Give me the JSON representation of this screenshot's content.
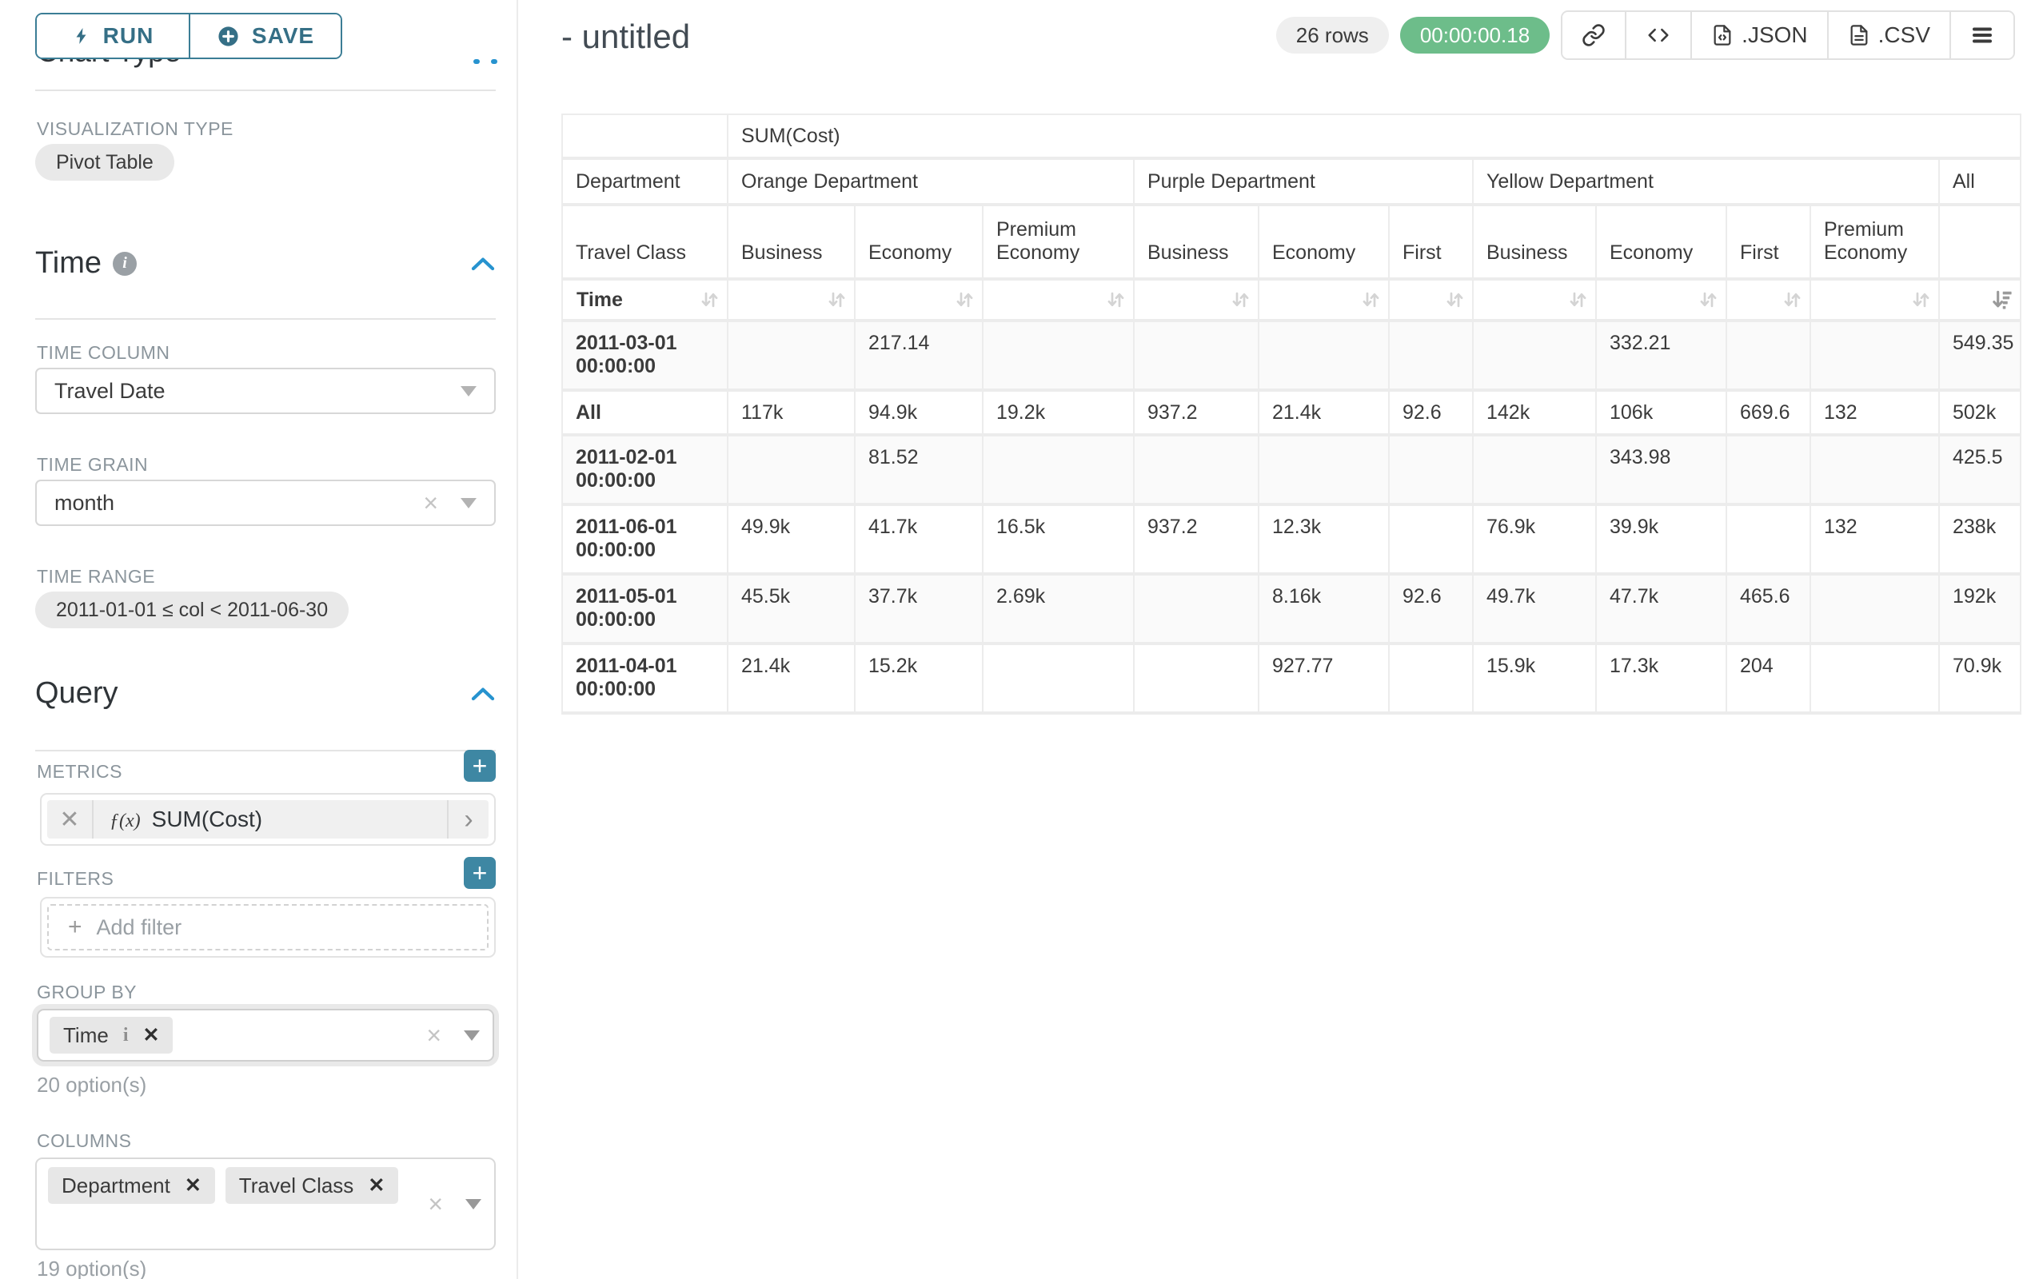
{
  "colors": {
    "teal": "#3b7d95",
    "blue_chevron": "#2793cf",
    "green_badge": "#6dbd8a",
    "label_gray": "#8b959c"
  },
  "icons": {
    "run": "lightning-icon",
    "save": "plus-circle-icon",
    "time_info": "info-circle-icon",
    "section_collapse": "chevron-up-icon",
    "select_open": "caret-down-icon",
    "select_clear": "x-icon",
    "metric_function": "fx-icon",
    "metric_expand": "chevron-right-icon",
    "add": "plus-icon",
    "share": "link-icon",
    "view_query": "code-icon",
    "export_json": "file-code-icon",
    "export_csv": "file-lines-icon",
    "more": "hamburger-menu-icon",
    "sort_inactive": "sort-up-down-icon",
    "sort_active": "sort-amount-desc-icon"
  },
  "sidebar": {
    "run_button": "RUN",
    "save_button": "SAVE",
    "chart_type_section": "Chart Type",
    "visualization_type_label": "VISUALIZATION TYPE",
    "visualization_type_value": "Pivot Table",
    "time": {
      "title": "Time",
      "time_column_label": "TIME COLUMN",
      "time_column_value": "Travel Date",
      "time_grain_label": "TIME GRAIN",
      "time_grain_value": "month",
      "time_range_label": "TIME RANGE",
      "time_range_value": "2011-01-01 ≤ col < 2011-06-30"
    },
    "query": {
      "title": "Query",
      "metrics_label": "METRICS",
      "metric_fx": "ƒ(x)",
      "metric_value": "SUM(Cost)",
      "filters_label": "FILTERS",
      "add_filter_placeholder": "Add filter",
      "group_by_label": "GROUP BY",
      "group_by_tags": [
        "Time"
      ],
      "group_by_options_hint": "20 option(s)",
      "columns_label": "COLUMNS",
      "columns_tags": [
        "Department",
        "Travel Class"
      ],
      "columns_options_hint": "19 option(s)"
    }
  },
  "main": {
    "title": "- untitled",
    "rows_badge": "26 rows",
    "timer_badge": "00:00:00.18",
    "export_json_label": ".JSON",
    "export_csv_label": ".CSV"
  },
  "pivot_table": {
    "metric_header": "SUM(Cost)",
    "department_axis": "Department",
    "class_axis": "Travel Class",
    "time_axis": "Time",
    "department_groups": [
      {
        "name": "Orange Department",
        "span": 3
      },
      {
        "name": "Purple Department",
        "span": 3
      },
      {
        "name": "Yellow Department",
        "span": 4
      },
      {
        "name": "All",
        "span": 1
      }
    ],
    "class_columns": [
      "Business",
      "Economy",
      "Premium Economy",
      "Business",
      "Economy",
      "First",
      "Business",
      "Economy",
      "First",
      "Premium Economy",
      ""
    ],
    "sort": {
      "active_column_index": 10,
      "direction": "desc"
    },
    "rows": [
      {
        "label": "2011-03-01 00:00:00",
        "values": [
          "",
          "217.14",
          "",
          "",
          "",
          "",
          "",
          "332.21",
          "",
          "",
          "549.35"
        ]
      },
      {
        "label": "All",
        "values": [
          "117k",
          "94.9k",
          "19.2k",
          "937.2",
          "21.4k",
          "92.6",
          "142k",
          "106k",
          "669.6",
          "132",
          "502k"
        ]
      },
      {
        "label": "2011-02-01 00:00:00",
        "values": [
          "",
          "81.52",
          "",
          "",
          "",
          "",
          "",
          "343.98",
          "",
          "",
          "425.5"
        ]
      },
      {
        "label": "2011-06-01 00:00:00",
        "values": [
          "49.9k",
          "41.7k",
          "16.5k",
          "937.2",
          "12.3k",
          "",
          "76.9k",
          "39.9k",
          "",
          "132",
          "238k"
        ]
      },
      {
        "label": "2011-05-01 00:00:00",
        "values": [
          "45.5k",
          "37.7k",
          "2.69k",
          "",
          "8.16k",
          "92.6",
          "49.7k",
          "47.7k",
          "465.6",
          "",
          "192k"
        ]
      },
      {
        "label": "2011-04-01 00:00:00",
        "values": [
          "21.4k",
          "15.2k",
          "",
          "",
          "927.77",
          "",
          "15.9k",
          "17.3k",
          "204",
          "",
          "70.9k"
        ]
      }
    ]
  }
}
